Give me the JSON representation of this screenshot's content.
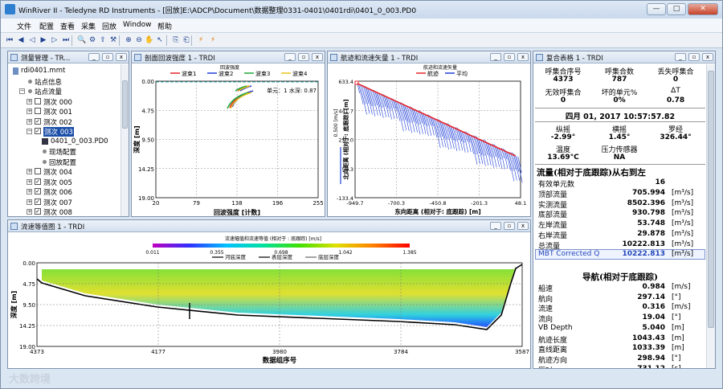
{
  "window": {
    "title": "WinRiver II - Teledyne RD Instruments - [回放]E:\\ADCP\\Document\\数据整理0331-0401\\0401rdi\\0401_0_003.PD0",
    "min": "—",
    "max": "□",
    "close": "✕"
  },
  "menu": [
    "文件",
    "配置",
    "查看",
    "采集",
    "回放",
    "Window",
    "帮助"
  ],
  "toolbar_icons": [
    "first-icon",
    "prev-icon",
    "play-back-icon",
    "play-icon",
    "step-icon",
    "last-icon",
    "zoom-icon",
    "config-icon",
    "export-icon",
    "settings-icon",
    "zoom-in-icon",
    "zoom-out-icon",
    "pan-icon",
    "pointer-icon",
    "copy-icon",
    "paste-icon",
    "bolt-icon",
    "bolt2-icon"
  ],
  "tree": {
    "title": "测量管理 - TR...",
    "items": [
      {
        "label": "rdi0401.mmt",
        "level": 0,
        "icon": "file"
      },
      {
        "label": "站点信息",
        "level": 1,
        "icon": "dot"
      },
      {
        "label": "站点流量",
        "level": 1,
        "icon": "dot",
        "exp": "−"
      },
      {
        "label": "测次 000",
        "level": 2,
        "chk": false,
        "exp": "+"
      },
      {
        "label": "测次 001",
        "level": 2,
        "chk": false,
        "exp": "+"
      },
      {
        "label": "测次 002",
        "level": 2,
        "chk": true,
        "exp": "+"
      },
      {
        "label": "测次 003",
        "level": 2,
        "chk": true,
        "exp": "−",
        "sel": true
      },
      {
        "label": "0401_0_003.PD0",
        "level": 3,
        "icon": "disk"
      },
      {
        "label": "现场配置",
        "level": 3,
        "icon": "dot"
      },
      {
        "label": "回放配置",
        "level": 3,
        "icon": "dot"
      },
      {
        "label": "测次 004",
        "level": 2,
        "chk": false,
        "exp": "+"
      },
      {
        "label": "测次 005",
        "level": 2,
        "chk": true,
        "exp": "+"
      },
      {
        "label": "测次 006",
        "level": 2,
        "chk": true,
        "exp": "+"
      },
      {
        "label": "测次 007",
        "level": 2,
        "chk": true,
        "exp": "+"
      },
      {
        "label": "测次 008",
        "level": 2,
        "chk": true,
        "exp": "+"
      }
    ]
  },
  "profile": {
    "title": "剖面回波强度 1 - TRDI",
    "header": "回波强度",
    "legend": [
      "波束1",
      "波束2",
      "波束3",
      "波束4"
    ],
    "legend_colors": [
      "#e6262b",
      "#1f3fd9",
      "#20a83a",
      "#e8c21a"
    ],
    "note": "单元：1  水深: 0.87",
    "ylabel": "深度 [m]",
    "xlabel": "回波强度 [计数]",
    "yticks": [
      "0.00",
      "4.75",
      "9.50",
      "14.25",
      "19.00"
    ],
    "xticks": [
      "20",
      "79",
      "138",
      "196",
      "255"
    ]
  },
  "track": {
    "title": "航迹和流速矢量 1 - TRDI",
    "header": "航迹和流速矢量",
    "legend": [
      "航迹",
      "平均"
    ],
    "scale": "0.500 [m/s]",
    "ylabel": "北向距离 (相对于: 底跟踪) [m]",
    "xlabel": "东向距离 (相对于: 底跟踪) [m]",
    "yticks": [
      "633.4",
      "441.7",
      "250.0",
      "58.3",
      "-133.4"
    ],
    "xticks": [
      "-949.7",
      "-700.3",
      "-450.8",
      "-201.3",
      "48.1"
    ]
  },
  "contour": {
    "title": "流速等值图 1 - TRDI",
    "header": "流速幅值和流速等值 (相对于 : 底跟踪) [m/s]",
    "colorbar_ticks": [
      "0.011",
      "0.355",
      "0.698",
      "1.042",
      "1.385"
    ],
    "legend": [
      "河底深度",
      "表层深度",
      "底层深度"
    ],
    "ylabel": "深度 [m]",
    "xlabel": "数据组序号",
    "yticks": [
      "0.00",
      "4.75",
      "9.50",
      "14.25",
      "19.00"
    ],
    "xticks": [
      "4373",
      "4177",
      "3980",
      "3784",
      "3587"
    ]
  },
  "summary": {
    "title": "复合表格 1 - TRDI",
    "h1": [
      "呼集合序号",
      "呼集合数",
      "丢失呼集合"
    ],
    "v1": [
      "4373",
      "787",
      "0"
    ],
    "h2": [
      "无效呼集合",
      "坏的单元%",
      "ΔT"
    ],
    "v2": [
      "0",
      "0%",
      "0.78"
    ],
    "date": "四月 01, 2017  10:57:57.82",
    "h3": [
      "纵摇",
      "横摇",
      "罗经"
    ],
    "v3": [
      "-2.99°",
      "1.45°",
      "326.44°"
    ],
    "h4": [
      "温度",
      "压力传感器"
    ],
    "v4": [
      "13.69°C",
      "NA"
    ],
    "flow_header": "流量(相对于底跟踪)从右到左",
    "cells_label": "有效单元数",
    "cells_value": "16",
    "flow": [
      {
        "label": "顶部流量",
        "value": "705.994",
        "unit": "[m³/s]"
      },
      {
        "label": "实测流量",
        "value": "8502.396",
        "unit": "[m³/s]"
      },
      {
        "label": "底部流量",
        "value": "930.798",
        "unit": "[m³/s]"
      },
      {
        "label": "左岸流量",
        "value": "53.748",
        "unit": "[m³/s]"
      },
      {
        "label": "右岸流量",
        "value": "29.878",
        "unit": "[m³/s]"
      },
      {
        "label": "总流量",
        "value": "10222.813",
        "unit": "[m³/s]"
      },
      {
        "label": "MBT Corrected Q",
        "value": "10222.813",
        "unit": "[m³/s]"
      }
    ],
    "nav_header": "导航(相对于底跟踪)",
    "nav": [
      {
        "label": "船速",
        "value": "0.984",
        "unit": "[m/s]"
      },
      {
        "label": "航向",
        "value": "297.14",
        "unit": "[°]"
      },
      {
        "label": "流速",
        "value": "0.316",
        "unit": "[m/s]"
      },
      {
        "label": "流向",
        "value": "19.04",
        "unit": "[°]"
      },
      {
        "label": "VB Depth",
        "value": "5.040",
        "unit": "[m]"
      },
      {
        "label": "航迹长度",
        "value": "1043.43",
        "unit": "[m]"
      },
      {
        "label": "直线距离",
        "value": "1033.39",
        "unit": "[m]"
      },
      {
        "label": "航迹方向",
        "value": "298.94",
        "unit": "[°]"
      },
      {
        "label": "历时",
        "value": "731.12",
        "unit": "[s]"
      }
    ]
  },
  "watermark": "大数跨境"
}
